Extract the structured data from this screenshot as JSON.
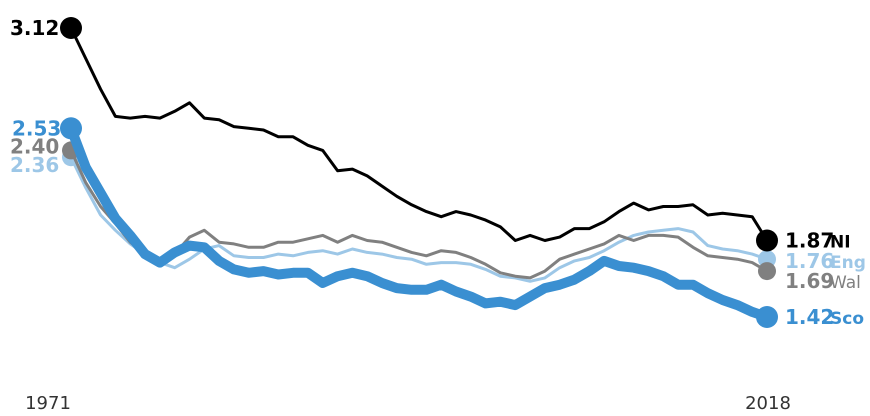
{
  "chart_data": {
    "type": "line",
    "x_start": 1971,
    "x_end": 2018,
    "xticks": [
      "1971",
      "2018"
    ],
    "ylim": [
      0.6,
      3.2
    ],
    "grid": false,
    "series": [
      {
        "name": "NI",
        "color": "#000000",
        "start_label": "3.12",
        "end_label": "1.87",
        "values": [
          3.12,
          2.94,
          2.76,
          2.6,
          2.59,
          2.6,
          2.59,
          2.63,
          2.68,
          2.59,
          2.58,
          2.54,
          2.53,
          2.52,
          2.48,
          2.48,
          2.43,
          2.4,
          2.28,
          2.29,
          2.25,
          2.19,
          2.13,
          2.08,
          2.04,
          2.01,
          2.04,
          2.02,
          1.99,
          1.95,
          1.87,
          1.9,
          1.87,
          1.89,
          1.94,
          1.94,
          1.98,
          2.04,
          2.09,
          2.05,
          2.07,
          2.07,
          2.08,
          2.02,
          2.03,
          2.02,
          2.01,
          1.87
        ]
      },
      {
        "name": "Eng",
        "color": "#9dc7e7",
        "start_label": "2.36",
        "end_label": "1.76",
        "values": [
          2.36,
          2.18,
          2.02,
          1.93,
          1.85,
          1.79,
          1.74,
          1.71,
          1.76,
          1.82,
          1.84,
          1.78,
          1.77,
          1.77,
          1.79,
          1.78,
          1.8,
          1.81,
          1.79,
          1.82,
          1.8,
          1.79,
          1.77,
          1.76,
          1.73,
          1.74,
          1.74,
          1.73,
          1.7,
          1.66,
          1.65,
          1.63,
          1.65,
          1.71,
          1.75,
          1.77,
          1.81,
          1.86,
          1.9,
          1.92,
          1.93,
          1.94,
          1.92,
          1.84,
          1.82,
          1.81,
          1.79,
          1.76
        ]
      },
      {
        "name": "Wal",
        "color": "#808080",
        "start_label": "2.40",
        "end_label": "1.69",
        "values": [
          2.4,
          2.21,
          2.07,
          1.97,
          1.86,
          1.79,
          1.74,
          1.79,
          1.89,
          1.93,
          1.86,
          1.85,
          1.83,
          1.83,
          1.86,
          1.86,
          1.88,
          1.9,
          1.86,
          1.9,
          1.87,
          1.86,
          1.83,
          1.8,
          1.78,
          1.81,
          1.8,
          1.77,
          1.73,
          1.68,
          1.66,
          1.65,
          1.69,
          1.76,
          1.79,
          1.82,
          1.85,
          1.9,
          1.87,
          1.9,
          1.9,
          1.89,
          1.83,
          1.78,
          1.77,
          1.76,
          1.74,
          1.69
        ]
      },
      {
        "name": "Sco",
        "color": "#3a8fd1",
        "start_label": "2.53",
        "end_label": "1.42",
        "values": [
          2.53,
          2.3,
          2.15,
          2.0,
          1.9,
          1.79,
          1.74,
          1.8,
          1.84,
          1.83,
          1.75,
          1.7,
          1.68,
          1.69,
          1.67,
          1.68,
          1.68,
          1.62,
          1.66,
          1.68,
          1.66,
          1.62,
          1.59,
          1.58,
          1.58,
          1.61,
          1.57,
          1.54,
          1.5,
          1.51,
          1.49,
          1.54,
          1.59,
          1.61,
          1.64,
          1.69,
          1.75,
          1.72,
          1.71,
          1.69,
          1.66,
          1.61,
          1.61,
          1.56,
          1.52,
          1.49,
          1.45,
          1.42
        ]
      }
    ]
  }
}
